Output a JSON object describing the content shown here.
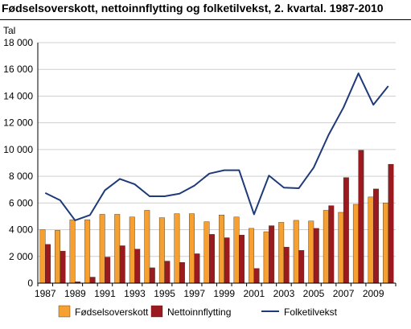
{
  "chart_data": {
    "type": "bar",
    "title": "Fødselsoverskott, nettoinnflytting og folketilvekst, 2. kvartal. 1987-2010",
    "ylabel": "Tal",
    "xlabel": "",
    "ylim": [
      0,
      18000
    ],
    "yticks": [
      0,
      2000,
      4000,
      6000,
      8000,
      10000,
      12000,
      14000,
      16000,
      18000
    ],
    "ytick_labels": [
      "0",
      "2 000",
      "4 000",
      "6 000",
      "8 000",
      "10 000",
      "12 000",
      "14 000",
      "16 000",
      "18 000"
    ],
    "categories": [
      "1987",
      "1988",
      "1989",
      "1990",
      "1991",
      "1992",
      "1993",
      "1994",
      "1995",
      "1996",
      "1997",
      "1998",
      "1999",
      "2000",
      "2001",
      "2002",
      "2003",
      "2004",
      "2005",
      "2006",
      "2007",
      "2008",
      "2009",
      "2010"
    ],
    "xtick_labels": [
      "1987",
      "1989",
      "1991",
      "1993",
      "1995",
      "1997",
      "1999",
      "2001",
      "2003",
      "2005",
      "2007",
      "2009"
    ],
    "grid": true,
    "legend_position": "bottom",
    "series": [
      {
        "name": "Fødselsoverskott",
        "kind": "bar",
        "color": "#f5a030",
        "values": [
          4000,
          3950,
          4750,
          4750,
          5150,
          5150,
          4950,
          5450,
          4900,
          5200,
          5200,
          4600,
          5100,
          4950,
          4100,
          3850,
          4550,
          4700,
          4650,
          5450,
          5300,
          5900,
          6450,
          6000
        ]
      },
      {
        "name": "Nettoinnflytting",
        "kind": "bar",
        "color": "#9b1a1f",
        "values": [
          2900,
          2400,
          100,
          450,
          1950,
          2800,
          2550,
          1150,
          1650,
          1550,
          2200,
          3650,
          3400,
          3600,
          1100,
          4300,
          2700,
          2450,
          4100,
          5800,
          7900,
          9950,
          7050,
          8900
        ]
      },
      {
        "name": "Folketilvekst",
        "kind": "line",
        "color": "#1f3a7a",
        "values": [
          6750,
          6200,
          4700,
          5100,
          6950,
          7800,
          7400,
          6500,
          6500,
          6700,
          7300,
          8200,
          8450,
          8450,
          5150,
          8050,
          7150,
          7100,
          8650,
          11100,
          13150,
          15700,
          13350,
          14750
        ]
      }
    ]
  }
}
